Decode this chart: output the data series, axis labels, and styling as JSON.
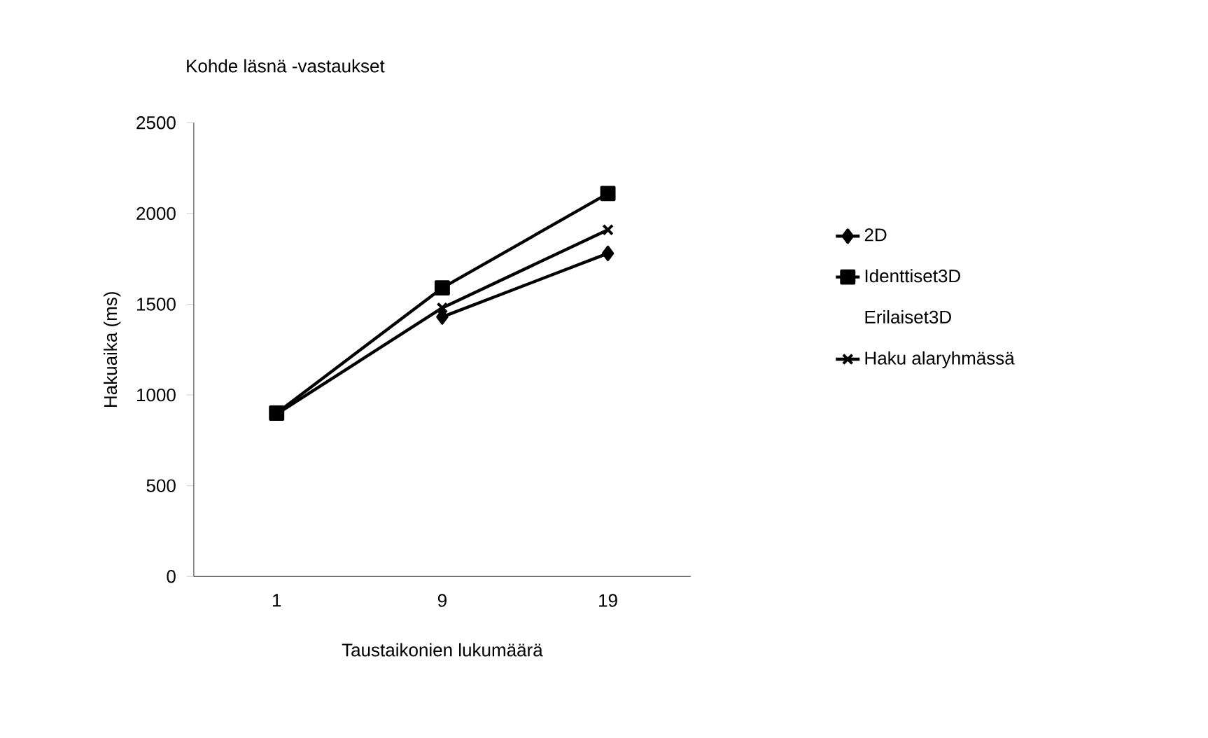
{
  "chart_data": {
    "type": "line",
    "title": "Kohde läsnä -vastaukset",
    "xlabel": "Taustaikonien lukumäärä",
    "ylabel": "Hakuaika (ms)",
    "categories": [
      "1",
      "9",
      "19"
    ],
    "series": [
      {
        "name": "2D",
        "color": "#000000",
        "marker": "diamond",
        "values": [
          null,
          1430,
          1780
        ]
      },
      {
        "name": "Identtiset3D",
        "color": "#000000",
        "marker": "square",
        "values": [
          900,
          1590,
          2110
        ]
      },
      {
        "name": "Erilaiset3D",
        "values": [
          null,
          null,
          null
        ]
      },
      {
        "name": "Haku alaryhmässä",
        "color": "#000000",
        "marker": "cross",
        "values": [
          895,
          1480,
          1910
        ]
      }
    ],
    "ylim": [
      0,
      2500
    ],
    "yticks": [
      0,
      500,
      1000,
      1500,
      2000,
      2500
    ],
    "grid": false,
    "legend": "right",
    "line_style": "solid"
  }
}
